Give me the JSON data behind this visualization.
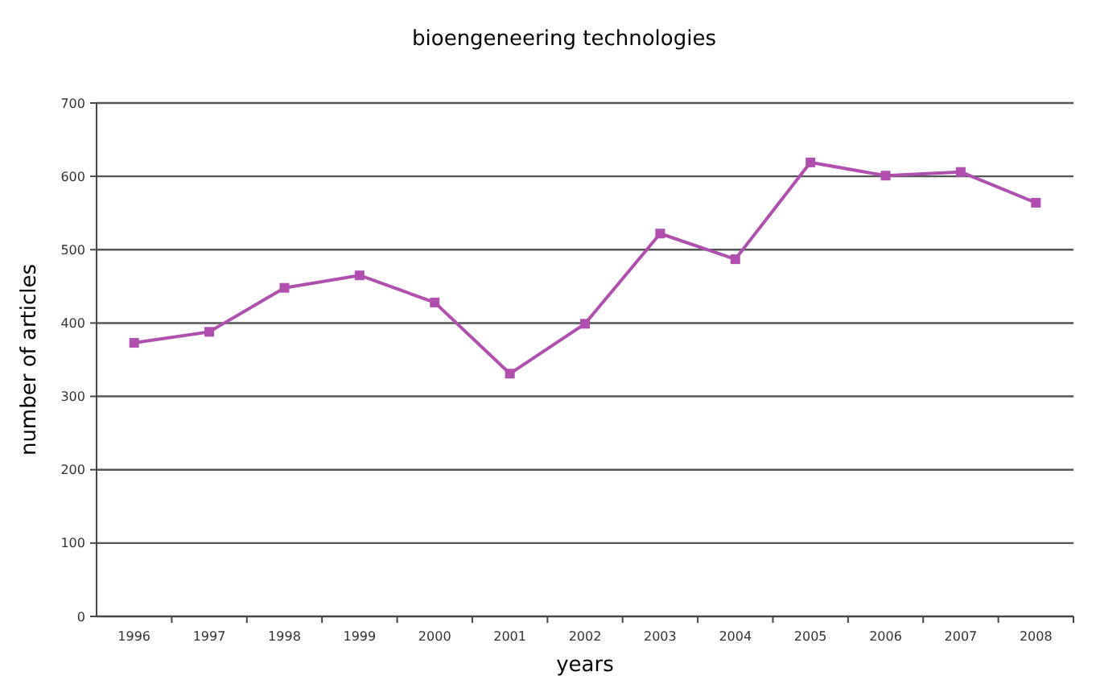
{
  "chart_data": {
    "type": "line",
    "title": "bioengeneering technologies",
    "xlabel": "years",
    "ylabel": "number of articles",
    "categories": [
      "1996",
      "1997",
      "1998",
      "1999",
      "2000",
      "2001",
      "2002",
      "2003",
      "2004",
      "2005",
      "2006",
      "2007",
      "2008"
    ],
    "series": [
      {
        "color": "#b04fb0",
        "values": [
          373,
          388,
          448,
          465,
          428,
          331,
          399,
          522,
          487,
          619,
          601,
          606,
          564
        ]
      }
    ],
    "ylim": [
      0,
      700
    ],
    "yticks": [
      0,
      100,
      200,
      300,
      400,
      500,
      600,
      700
    ],
    "grid": "y",
    "marker": "square",
    "line_style": "solid"
  }
}
